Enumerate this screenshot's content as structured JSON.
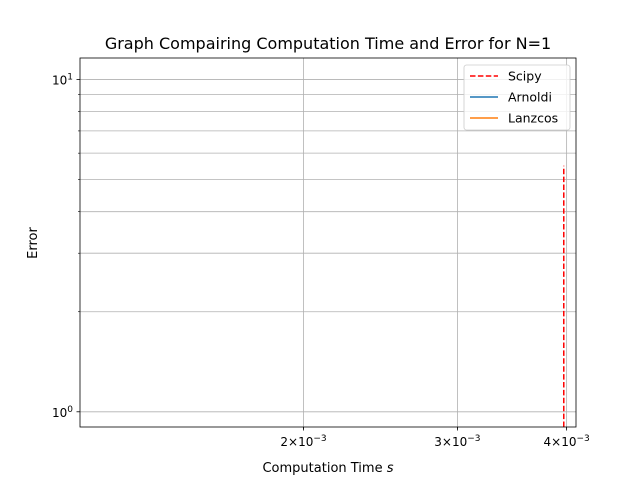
{
  "chart_data": {
    "type": "line",
    "title": "Graph Compairing Computation Time and Error for N=1",
    "xlabel": "Computation Time $s$",
    "ylabel": "Error",
    "xscale": "log",
    "yscale": "log",
    "xlim": [
      0.00111,
      0.0041
    ],
    "ylim": [
      0.9,
      11.6
    ],
    "grid": true,
    "legend_position": "top-right",
    "x_ticks": [
      {
        "value": 0.002,
        "base": "2×10",
        "exp": "−3"
      },
      {
        "value": 0.003,
        "base": "3×10",
        "exp": "−3"
      },
      {
        "value": 0.004,
        "base": "4×10",
        "exp": "−3"
      }
    ],
    "x_minor_gridlines": [
      0.002,
      0.003,
      0.004
    ],
    "y_ticks": [
      {
        "value": 1,
        "base": "10",
        "exp": "0"
      },
      {
        "value": 10,
        "base": "10",
        "exp": "1"
      }
    ],
    "y_minor_gridlines": [
      2,
      3,
      4,
      5,
      6,
      7,
      8,
      9
    ],
    "series": [
      {
        "name": "Scipy",
        "color": "#ff0000",
        "dash": "dashed",
        "x": [
          0.00397,
          0.00397
        ],
        "y": [
          0.9,
          5.5
        ]
      },
      {
        "name": "Arnoldi",
        "color": "#1f77b4",
        "dash": "solid",
        "x": [],
        "y": []
      },
      {
        "name": "Lanzcos",
        "color": "#ff7f0e",
        "dash": "solid",
        "x": [],
        "y": []
      }
    ]
  }
}
